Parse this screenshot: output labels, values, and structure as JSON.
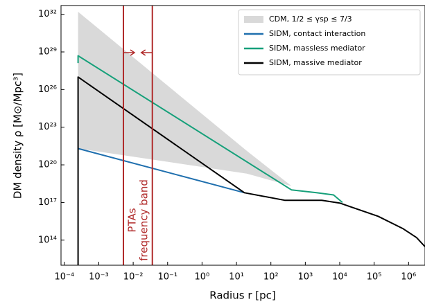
{
  "chart_data": {
    "type": "line",
    "log_x": true,
    "log_y": true,
    "xlabel": "Radius r [pc]",
    "ylabel": "DM density ρ [M⊙/Mpc³]",
    "xlim": [
      8e-05,
      3000000.0
    ],
    "ylim": [
      1000000000000.0,
      5e+32
    ],
    "xticks": [
      {
        "value": 0.0001,
        "label": "10⁻⁴"
      },
      {
        "value": 0.001,
        "label": "10⁻³"
      },
      {
        "value": 0.01,
        "label": "10⁻²"
      },
      {
        "value": 0.1,
        "label": "10⁻¹"
      },
      {
        "value": 1,
        "label": "10⁰"
      },
      {
        "value": 10,
        "label": "10¹"
      },
      {
        "value": 100,
        "label": "10²"
      },
      {
        "value": 1000,
        "label": "10³"
      },
      {
        "value": 10000,
        "label": "10⁴"
      },
      {
        "value": 100000,
        "label": "10⁵"
      },
      {
        "value": 1000000,
        "label": "10⁶"
      }
    ],
    "yticks": [
      {
        "value": 100000000000000.0,
        "label": "10¹⁴"
      },
      {
        "value": 1e+17,
        "label": "10¹⁷"
      },
      {
        "value": 1e+20,
        "label": "10²⁰"
      },
      {
        "value": 1e+23,
        "label": "10²³"
      },
      {
        "value": 1e+26,
        "label": "10²⁶"
      },
      {
        "value": 1e+29,
        "label": "10²⁹"
      },
      {
        "value": 1e+32,
        "label": "10³²"
      }
    ],
    "legend": "upper right",
    "series": [
      {
        "name": "CDM, 1/2 ≤ γsp ≤ 7/3",
        "color": "#d9d9d9",
        "fill": true,
        "x": [
          0.00025,
          20,
          400,
          2100,
          6600,
          12000
        ],
        "values": [
          1.6e+32,
          1.3e+21,
          2e+18,
          6e+17,
          4e+17,
          1e+17
        ],
        "lower": [
          2e+21,
          2e+19,
          2e+18,
          6e+17,
          4e+17,
          1e+17
        ]
      },
      {
        "name": "SIDM, contact interaction",
        "color": "#1f6fae",
        "x": [
          0.00025,
          17
        ],
        "values": [
          2e+21,
          6e+17
        ]
      },
      {
        "name": "SIDM, massless mediator",
        "color": "#16a07a",
        "x": [
          0.00025,
          0.00025,
          400,
          2100,
          6600,
          12000
        ],
        "values": [
          1.3e+28,
          5e+28,
          1e+18,
          6e+17,
          4e+17,
          1e+17
        ]
      },
      {
        "name": "SIDM, massive mediator",
        "color": "#000000",
        "x": [
          0.00025,
          0.00025,
          17,
          250,
          3000,
          10000,
          130000,
          700000,
          1700000,
          3000000
        ],
        "values": [
          1000000000000.0,
          1e+27,
          6e+17,
          1.5e+17,
          1.5e+17,
          9e+16,
          8000000000000000.0,
          800000000000000.0,
          160000000000000.0,
          30000000000000.0
        ]
      }
    ],
    "band": {
      "x": [
        0.0052,
        0.036
      ],
      "color": "#b02a2a",
      "labels": [
        "PTAs",
        "frequency band"
      ]
    }
  }
}
